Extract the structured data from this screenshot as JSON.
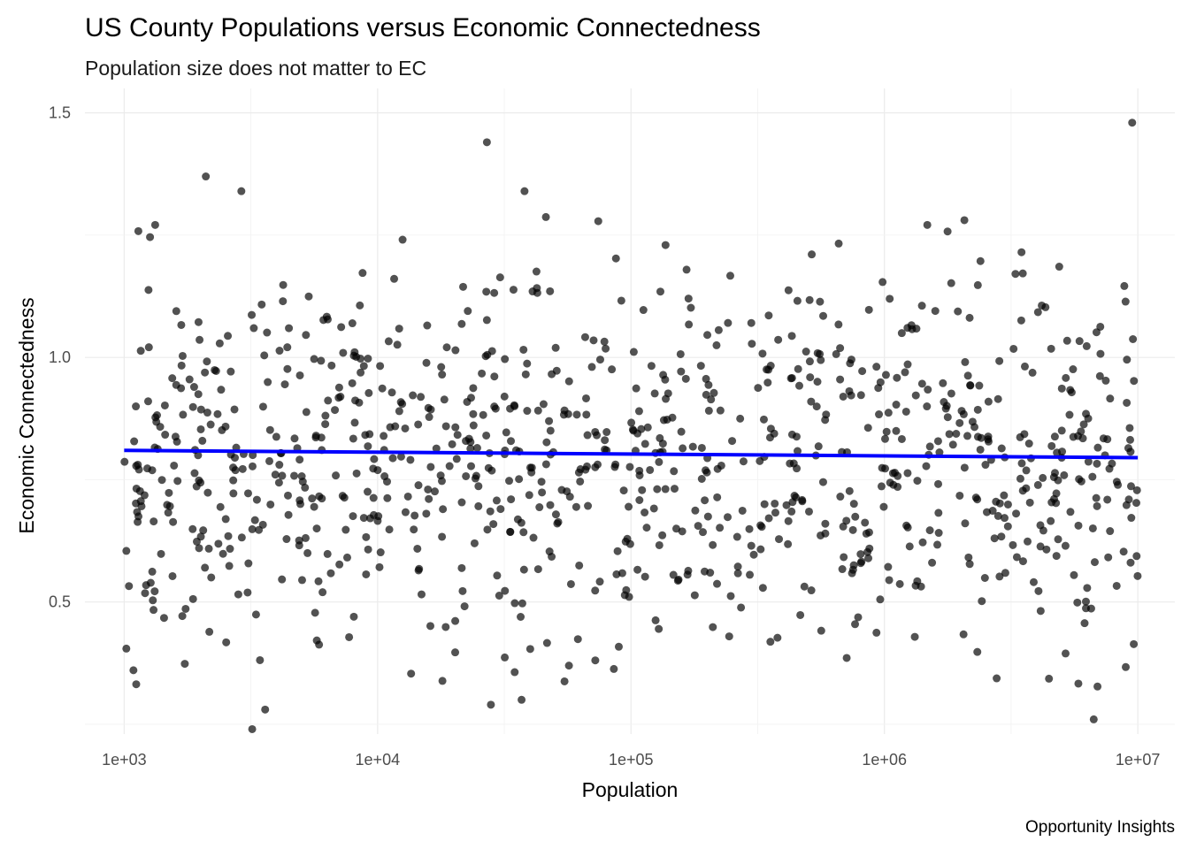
{
  "chart_data": {
    "type": "scatter",
    "title": "US County Populations versus Economic Connectedness",
    "subtitle": "Population size does not matter to EC",
    "caption": "Opportunity Insights",
    "xlabel": "Population",
    "ylabel": "Economic Connectedness",
    "x_scale": "log10",
    "xlim": [
      700,
      14000000
    ],
    "ylim": [
      0.23,
      1.55
    ],
    "x_ticks": [
      1000,
      10000,
      100000,
      1000000,
      10000000
    ],
    "x_tick_labels": [
      "1e+03",
      "1e+04",
      "1e+05",
      "1e+06",
      "1e+07"
    ],
    "y_ticks": [
      0.5,
      1.0,
      1.5
    ],
    "y_tick_labels": [
      "0.5",
      "1.0",
      "1.5"
    ],
    "grid": true,
    "n_points": 1000,
    "point_color": "#000000",
    "trend_line": {
      "type": "linear fit",
      "color": "#0000ff",
      "x": [
        1000,
        10000000
      ],
      "y": [
        0.81,
        0.795
      ]
    },
    "highlighted_points": [
      {
        "x": 9500000,
        "y": 1.48
      },
      {
        "x": 27000,
        "y": 1.44
      },
      {
        "x": 2100,
        "y": 1.37
      },
      {
        "x": 2900,
        "y": 1.34
      },
      {
        "x": 38000,
        "y": 1.34
      },
      {
        "x": 6700000,
        "y": 0.26
      },
      {
        "x": 3200,
        "y": 0.24
      },
      {
        "x": 3600,
        "y": 0.28
      },
      {
        "x": 28000,
        "y": 0.29
      },
      {
        "x": 37000,
        "y": 0.3
      }
    ]
  }
}
